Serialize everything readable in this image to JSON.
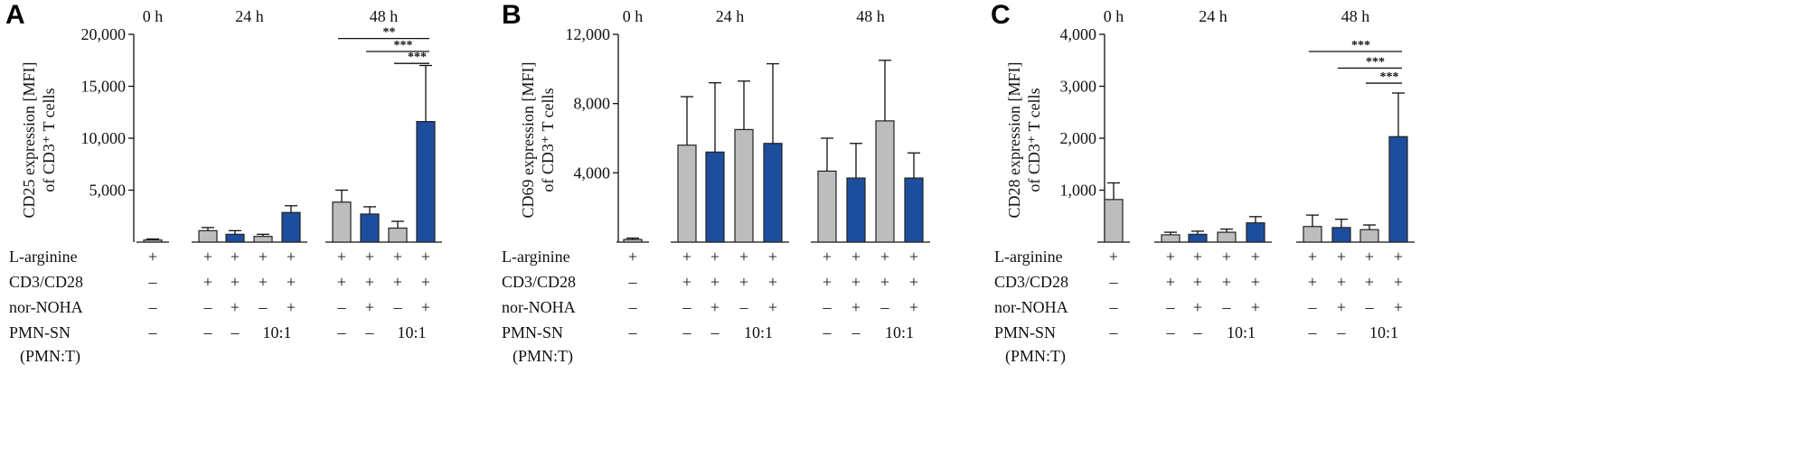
{
  "figure": {
    "row_labels": {
      "arginine": "L-arginine",
      "cd3cd28": "CD3/CD28",
      "noha": "nor-NOHA",
      "pmn": "PMN-SN",
      "pmn_sub": "(PMN:T)"
    },
    "colors": {
      "gray": "#BDBDBD",
      "blue": "#1D4E9E",
      "axis": "#111111"
    }
  },
  "chart_data": [
    {
      "panel": "A",
      "type": "bar",
      "ylabel_line1": "CD25 expression [MFI]",
      "ylabel_line2": "of CD3⁺ T cells",
      "ylim": [
        0,
        20000
      ],
      "yticks": [
        5000,
        10000,
        15000,
        20000
      ],
      "ytick_labels": [
        "5,000",
        "10,000",
        "15,000",
        "20,000"
      ],
      "time_labels": [
        "0 h",
        "24 h",
        "48 h"
      ],
      "groups": [
        {
          "time": "0 h",
          "bars": [
            {
              "value": 200,
              "error": 100,
              "color": "gray"
            }
          ]
        },
        {
          "time": "24 h",
          "bars": [
            {
              "value": 1100,
              "error": 300,
              "color": "gray"
            },
            {
              "value": 750,
              "error": 350,
              "color": "blue"
            },
            {
              "value": 550,
              "error": 200,
              "color": "gray"
            },
            {
              "value": 2850,
              "error": 650,
              "color": "blue"
            }
          ]
        },
        {
          "time": "48 h",
          "bars": [
            {
              "value": 3850,
              "error": 1150,
              "color": "gray"
            },
            {
              "value": 2700,
              "error": 700,
              "color": "blue"
            },
            {
              "value": 1350,
              "error": 650,
              "color": "gray"
            },
            {
              "value": 11600,
              "error": 5400,
              "color": "blue"
            }
          ]
        }
      ],
      "conditions": {
        "arginine": [
          "+",
          "+",
          "+",
          "+",
          "+",
          "+",
          "+",
          "+",
          "+"
        ],
        "cd3cd28": [
          "–",
          "+",
          "+",
          "+",
          "+",
          "+",
          "+",
          "+",
          "+"
        ],
        "noha": [
          "–",
          "–",
          "+",
          "–",
          "+",
          "–",
          "+",
          "–",
          "+"
        ],
        "pmn": [
          "–",
          "–",
          "–",
          "10:1",
          "",
          "–",
          "–",
          "10:1",
          ""
        ]
      },
      "significance": [
        {
          "from": 5,
          "to": 8,
          "label": "**",
          "y": 19600
        },
        {
          "from": 6,
          "to": 8,
          "label": "***",
          "y": 18350
        },
        {
          "from": 7,
          "to": 8,
          "label": "***",
          "y": 17200
        }
      ]
    },
    {
      "panel": "B",
      "type": "bar",
      "ylabel_line1": "CD69 expression [MFI]",
      "ylabel_line2": "of CD3⁺ T cells",
      "ylim": [
        0,
        12000
      ],
      "yticks": [
        4000,
        8000,
        12000
      ],
      "ytick_labels": [
        "4,000",
        "8,000",
        "12,000"
      ],
      "time_labels": [
        "0 h",
        "24 h",
        "48 h"
      ],
      "groups": [
        {
          "time": "0 h",
          "bars": [
            {
              "value": 150,
              "error": 80,
              "color": "gray"
            }
          ]
        },
        {
          "time": "24 h",
          "bars": [
            {
              "value": 5600,
              "error": 2800,
              "color": "gray"
            },
            {
              "value": 5200,
              "error": 4000,
              "color": "blue"
            },
            {
              "value": 6500,
              "error": 2800,
              "color": "gray"
            },
            {
              "value": 5700,
              "error": 4600,
              "color": "blue"
            }
          ]
        },
        {
          "time": "48 h",
          "bars": [
            {
              "value": 4100,
              "error": 1900,
              "color": "gray"
            },
            {
              "value": 3700,
              "error": 2000,
              "color": "blue"
            },
            {
              "value": 7000,
              "error": 3500,
              "color": "gray"
            },
            {
              "value": 3700,
              "error": 1450,
              "color": "blue"
            }
          ]
        }
      ],
      "conditions": {
        "arginine": [
          "+",
          "+",
          "+",
          "+",
          "+",
          "+",
          "+",
          "+",
          "+"
        ],
        "cd3cd28": [
          "–",
          "+",
          "+",
          "+",
          "+",
          "+",
          "+",
          "+",
          "+"
        ],
        "noha": [
          "–",
          "–",
          "+",
          "–",
          "+",
          "–",
          "+",
          "–",
          "+"
        ],
        "pmn": [
          "–",
          "–",
          "–",
          "10:1",
          "",
          "–",
          "–",
          "10:1",
          ""
        ]
      },
      "significance": []
    },
    {
      "panel": "C",
      "type": "bar",
      "ylabel_line1": "CD28 expression [MFI]",
      "ylabel_line2": "of CD3⁺ T cells",
      "ylim": [
        0,
        4000
      ],
      "yticks": [
        1000,
        2000,
        3000,
        4000
      ],
      "ytick_labels": [
        "1,000",
        "2,000",
        "3,000",
        "4,000"
      ],
      "time_labels": [
        "0 h",
        "24 h",
        "48 h"
      ],
      "groups": [
        {
          "time": "0 h",
          "bars": [
            {
              "value": 820,
              "error": 320,
              "color": "gray"
            }
          ]
        },
        {
          "time": "24 h",
          "bars": [
            {
              "value": 140,
              "error": 50,
              "color": "gray"
            },
            {
              "value": 150,
              "error": 60,
              "color": "blue"
            },
            {
              "value": 190,
              "error": 60,
              "color": "gray"
            },
            {
              "value": 370,
              "error": 120,
              "color": "blue"
            }
          ]
        },
        {
          "time": "48 h",
          "bars": [
            {
              "value": 300,
              "error": 220,
              "color": "gray"
            },
            {
              "value": 280,
              "error": 160,
              "color": "blue"
            },
            {
              "value": 240,
              "error": 90,
              "color": "gray"
            },
            {
              "value": 2030,
              "error": 840,
              "color": "blue"
            }
          ]
        }
      ],
      "conditions": {
        "arginine": [
          "+",
          "+",
          "+",
          "+",
          "+",
          "+",
          "+",
          "+",
          "+"
        ],
        "cd3cd28": [
          "–",
          "+",
          "+",
          "+",
          "+",
          "+",
          "+",
          "+",
          "+"
        ],
        "noha": [
          "–",
          "–",
          "+",
          "–",
          "+",
          "–",
          "+",
          "–",
          "+"
        ],
        "pmn": [
          "–",
          "–",
          "–",
          "10:1",
          "",
          "–",
          "–",
          "10:1",
          ""
        ]
      },
      "significance": [
        {
          "from": 5,
          "to": 8,
          "label": "***",
          "y": 3670
        },
        {
          "from": 6,
          "to": 8,
          "label": "***",
          "y": 3350
        },
        {
          "from": 7,
          "to": 8,
          "label": "***",
          "y": 3060
        }
      ]
    }
  ]
}
